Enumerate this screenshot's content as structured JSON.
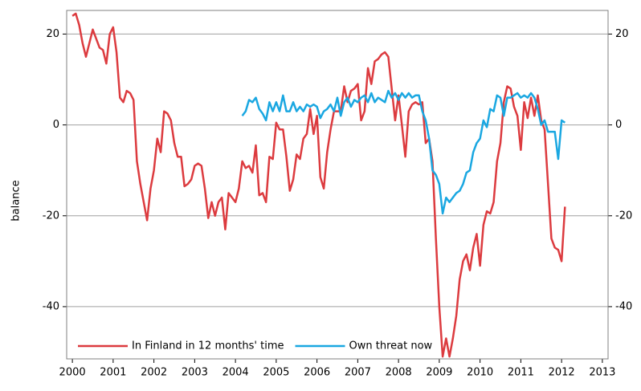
{
  "chart_data": {
    "type": "line",
    "ylabel": "balance",
    "xlim": [
      1999.86,
      2013.14
    ],
    "xticks": [
      2000,
      2001,
      2002,
      2003,
      2004,
      2005,
      2006,
      2007,
      2008,
      2009,
      2010,
      2011,
      2012,
      2013
    ],
    "ylim": [
      -51.5,
      25.2
    ],
    "yticks": [
      -40,
      -20,
      0,
      20
    ],
    "y2lim": [
      -51.5,
      25.2
    ],
    "y2ticks": [
      -40,
      -20,
      0,
      20
    ],
    "grid": true,
    "legend": "lower left",
    "x": [
      2000,
      2000.083,
      2000.167,
      2000.25,
      2000.333,
      2000.417,
      2000.5,
      2000.583,
      2000.667,
      2000.75,
      2000.833,
      2000.917,
      2001,
      2001.083,
      2001.167,
      2001.25,
      2001.333,
      2001.417,
      2001.5,
      2001.583,
      2001.667,
      2001.75,
      2001.833,
      2001.917,
      2002,
      2002.083,
      2002.167,
      2002.25,
      2002.333,
      2002.417,
      2002.5,
      2002.583,
      2002.667,
      2002.75,
      2002.833,
      2002.917,
      2003,
      2003.083,
      2003.167,
      2003.25,
      2003.333,
      2003.417,
      2003.5,
      2003.583,
      2003.667,
      2003.75,
      2003.833,
      2003.917,
      2004,
      2004.083,
      2004.167,
      2004.25,
      2004.333,
      2004.417,
      2004.5,
      2004.583,
      2004.667,
      2004.75,
      2004.833,
      2004.917,
      2005,
      2005.083,
      2005.167,
      2005.25,
      2005.333,
      2005.417,
      2005.5,
      2005.583,
      2005.667,
      2005.75,
      2005.833,
      2005.917,
      2006,
      2006.083,
      2006.167,
      2006.25,
      2006.333,
      2006.417,
      2006.5,
      2006.583,
      2006.667,
      2006.75,
      2006.833,
      2006.917,
      2007,
      2007.083,
      2007.167,
      2007.25,
      2007.333,
      2007.417,
      2007.5,
      2007.583,
      2007.667,
      2007.75,
      2007.833,
      2007.917,
      2008,
      2008.083,
      2008.167,
      2008.25,
      2008.333,
      2008.417,
      2008.5,
      2008.583,
      2008.667,
      2008.75,
      2008.833,
      2008.917,
      2009,
      2009.083,
      2009.167,
      2009.25,
      2009.333,
      2009.417,
      2009.5,
      2009.583,
      2009.667,
      2009.75,
      2009.833,
      2009.917,
      2010,
      2010.083,
      2010.167,
      2010.25,
      2010.333,
      2010.417,
      2010.5,
      2010.583,
      2010.667,
      2010.75,
      2010.833,
      2010.917,
      2011,
      2011.083,
      2011.167,
      2011.25,
      2011.333,
      2011.417,
      2011.5,
      2011.583,
      2011.667,
      2011.75,
      2011.833,
      2011.917,
      2012,
      2012.083
    ],
    "series": [
      {
        "name": "In Finland in 12 months' time",
        "color": "#dc3b3f",
        "values": [
          24,
          24.5,
          22,
          18,
          15,
          18,
          21,
          19,
          17,
          16.5,
          13.5,
          20,
          21.5,
          16,
          6,
          5,
          7.5,
          7,
          5.5,
          -8,
          -13,
          -17,
          -21,
          -14,
          -10,
          -3,
          -6,
          3,
          2.5,
          1,
          -4,
          -7,
          -7,
          -13.5,
          -13,
          -12,
          -9,
          -8.5,
          -9,
          -14,
          -20.5,
          -17,
          -20,
          -17,
          -16,
          -23,
          -15,
          -16,
          -17,
          -14,
          -8,
          -9.5,
          -9,
          -10.5,
          -4.5,
          -15.5,
          -15,
          -17,
          -7,
          -7.5,
          0.5,
          -1,
          -1,
          -7,
          -14.5,
          -12,
          -6.5,
          -7.5,
          -3,
          -2,
          3.5,
          -2,
          2,
          -11.5,
          -14,
          -6,
          -1,
          3,
          3,
          3,
          8.5,
          5,
          7.5,
          8,
          9,
          1,
          3,
          12.5,
          9,
          14,
          14.5,
          15.5,
          16,
          15,
          8,
          1,
          6.5,
          0,
          -7,
          3,
          4.5,
          5,
          4.5,
          5,
          -4,
          -3,
          -8,
          -25,
          -40,
          -51,
          -47,
          -51,
          -47,
          -42,
          -34,
          -30,
          -28.5,
          -32,
          -27,
          -24,
          -31,
          -22,
          -19,
          -19.5,
          -17,
          -8,
          -4,
          5,
          8.5,
          8,
          4,
          2,
          -5.5,
          5,
          1.5,
          6,
          2,
          6.5,
          1,
          -1,
          -13,
          -25,
          -27,
          -27.5,
          -30,
          -18
        ]
      },
      {
        "name": "Own threat now",
        "color": "#1aa7e1",
        "values": [
          null,
          null,
          null,
          null,
          null,
          null,
          null,
          null,
          null,
          null,
          null,
          null,
          null,
          null,
          null,
          null,
          null,
          null,
          null,
          null,
          null,
          null,
          null,
          null,
          null,
          null,
          null,
          null,
          null,
          null,
          null,
          null,
          null,
          null,
          null,
          null,
          null,
          null,
          null,
          null,
          null,
          null,
          null,
          null,
          null,
          null,
          null,
          null,
          null,
          null,
          2,
          3,
          5.5,
          5,
          6,
          3.5,
          2.5,
          1,
          5,
          3,
          5,
          3,
          6.5,
          3,
          3,
          5,
          3,
          4,
          3,
          4.5,
          4,
          4.5,
          4,
          1.5,
          3,
          3.5,
          4.5,
          3,
          6,
          2,
          5,
          6,
          4,
          5.5,
          5,
          6,
          6.5,
          5,
          7,
          5,
          6,
          5.5,
          5,
          7.5,
          6,
          7,
          5.5,
          7,
          6,
          7,
          6,
          6.5,
          6.5,
          3,
          1,
          -3,
          -10,
          -11,
          -13,
          -19.5,
          -16,
          -17,
          -16,
          -15,
          -14.5,
          -13,
          -10.5,
          -10,
          -6,
          -4,
          -3,
          1,
          -0.5,
          3.5,
          3,
          6.5,
          6,
          2,
          6,
          6,
          6.5,
          7,
          6,
          6.5,
          6,
          7,
          6,
          3.5,
          0,
          1,
          -1.5,
          -1.5,
          -1.5,
          -7.5,
          1,
          0.5
        ]
      }
    ]
  }
}
